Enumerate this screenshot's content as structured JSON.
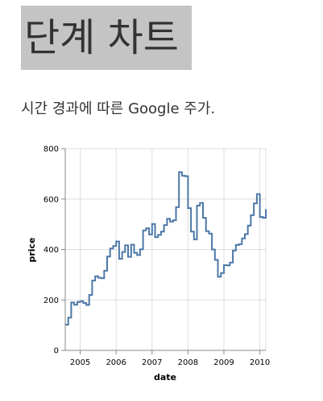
{
  "header": {
    "title": "단계 차트",
    "description": "시간 경과에 따른 Google 주가."
  },
  "chart_data": {
    "type": "line",
    "interpolation": "step",
    "xlabel": "date",
    "ylabel": "price",
    "xlim": [
      "2004-08",
      "2010-03"
    ],
    "ylim": [
      0,
      800
    ],
    "y_ticks": [
      0,
      200,
      400,
      600,
      800
    ],
    "x_ticks": [
      "2005",
      "2006",
      "2007",
      "2008",
      "2009",
      "2010"
    ],
    "grid": true,
    "line_color": "#4c78a8",
    "series": [
      {
        "x": [
          "2004-08",
          "2004-09",
          "2004-10",
          "2004-11",
          "2004-12",
          "2005-01",
          "2005-02",
          "2005-03",
          "2005-04",
          "2005-05",
          "2005-06",
          "2005-07",
          "2005-08",
          "2005-09",
          "2005-10",
          "2005-11",
          "2005-12",
          "2006-01",
          "2006-02",
          "2006-03",
          "2006-04",
          "2006-05",
          "2006-06",
          "2006-07",
          "2006-08",
          "2006-09",
          "2006-10",
          "2006-11",
          "2006-12",
          "2007-01",
          "2007-02",
          "2007-03",
          "2007-04",
          "2007-05",
          "2007-06",
          "2007-07",
          "2007-08",
          "2007-09",
          "2007-10",
          "2007-11",
          "2007-12",
          "2008-01",
          "2008-02",
          "2008-03",
          "2008-04",
          "2008-05",
          "2008-06",
          "2008-07",
          "2008-08",
          "2008-09",
          "2008-10",
          "2008-11",
          "2008-12",
          "2009-01",
          "2009-02",
          "2009-03",
          "2009-04",
          "2009-05",
          "2009-06",
          "2009-07",
          "2009-08",
          "2009-09",
          "2009-10",
          "2009-11",
          "2009-12",
          "2010-01",
          "2010-02",
          "2010-03"
        ],
        "values": [
          102,
          130,
          190,
          181,
          192,
          195,
          188,
          180,
          220,
          277,
          294,
          288,
          286,
          316,
          372,
          404,
          414,
          432,
          363,
          390,
          417,
          371,
          419,
          387,
          378,
          401,
          476,
          484,
          460,
          501,
          449,
          458,
          471,
          497,
          522,
          511,
          516,
          568,
          707,
          693,
          691,
          564,
          471,
          440,
          574,
          585,
          526,
          473,
          463,
          400,
          359,
          292,
          307,
          338,
          337,
          348,
          396,
          418,
          421,
          444,
          461,
          495,
          536,
          583,
          620,
          529,
          526,
          560
        ]
      }
    ]
  }
}
